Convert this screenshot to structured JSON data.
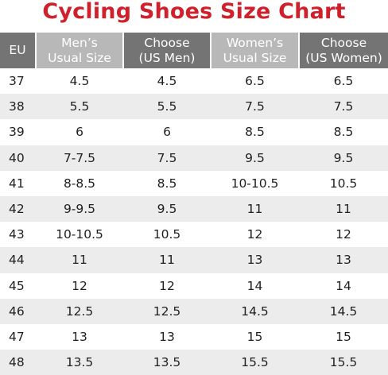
{
  "title": "Cycling Shoes Size Chart",
  "colors": {
    "title": "#d0202b",
    "header_dark": "#747474",
    "header_light": "#b8b8b8",
    "row_shaded": "#ececec"
  },
  "headers": [
    {
      "lines": [
        "EU"
      ],
      "style": "dark"
    },
    {
      "lines": [
        "Men’s",
        "Usual Size"
      ],
      "style": "light"
    },
    {
      "lines": [
        "Choose",
        "(US Men)"
      ],
      "style": "dark"
    },
    {
      "lines": [
        "Women’s",
        "Usual Size"
      ],
      "style": "light"
    },
    {
      "lines": [
        "Choose",
        "(US Women)"
      ],
      "style": "dark"
    }
  ],
  "rows": [
    [
      "37",
      "4.5",
      "4.5",
      "6.5",
      "6.5"
    ],
    [
      "38",
      "5.5",
      "5.5",
      "7.5",
      "7.5"
    ],
    [
      "39",
      "6",
      "6",
      "8.5",
      "8.5"
    ],
    [
      "40",
      "7-7.5",
      "7.5",
      "9.5",
      "9.5"
    ],
    [
      "41",
      "8-8.5",
      "8.5",
      "10-10.5",
      "10.5"
    ],
    [
      "42",
      "9-9.5",
      "9.5",
      "11",
      "11"
    ],
    [
      "43",
      "10-10.5",
      "10.5",
      "12",
      "12"
    ],
    [
      "44",
      "11",
      "11",
      "13",
      "13"
    ],
    [
      "45",
      "12",
      "12",
      "14",
      "14"
    ],
    [
      "46",
      "12.5",
      "12.5",
      "14.5",
      "14.5"
    ],
    [
      "47",
      "13",
      "13",
      "15",
      "15"
    ],
    [
      "48",
      "13.5",
      "13.5",
      "15.5",
      "15.5"
    ]
  ]
}
